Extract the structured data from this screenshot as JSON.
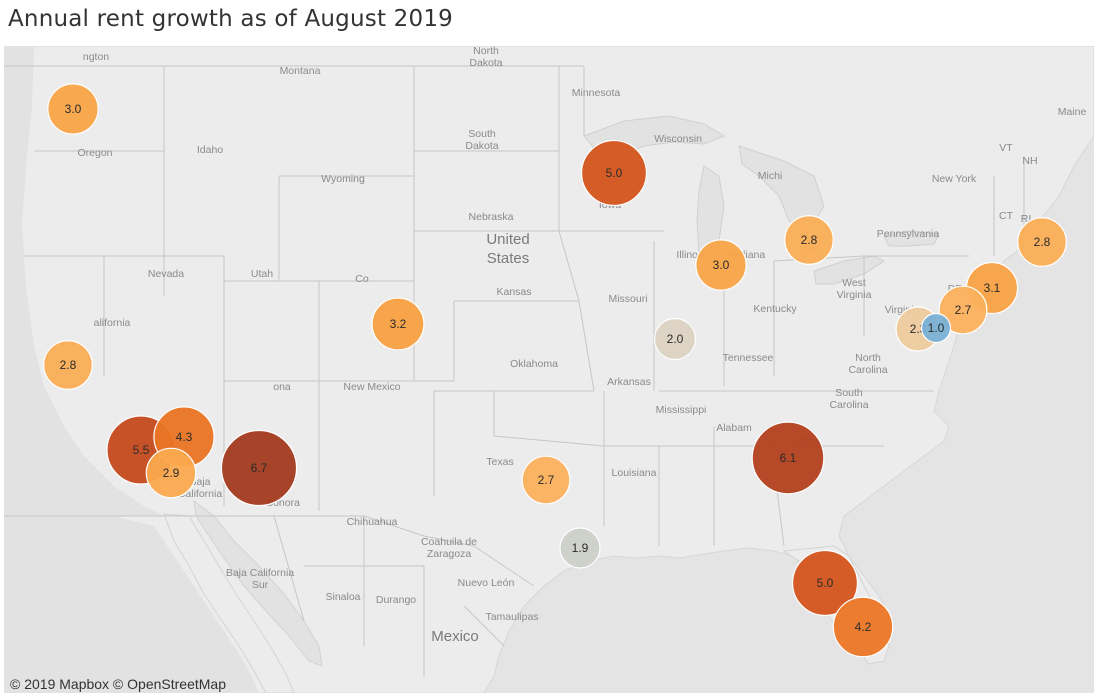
{
  "title": "Annual rent growth as of August 2019",
  "attribution": "© 2019 Mapbox © OpenStreetMap",
  "country_labels": [
    {
      "id": "usa",
      "lines": [
        "United",
        "States"
      ]
    },
    {
      "id": "mexico",
      "lines": [
        "Mexico"
      ]
    }
  ],
  "place_labels": [
    {
      "id": "washington",
      "text": "ngton"
    },
    {
      "id": "montana",
      "text": "Montana"
    },
    {
      "id": "north-dakota",
      "lines": [
        "North",
        "Dakota"
      ]
    },
    {
      "id": "minnesota",
      "text": "Minnesota"
    },
    {
      "id": "maine",
      "text": "Maine"
    },
    {
      "id": "oregon",
      "text": "Oregon"
    },
    {
      "id": "idaho",
      "text": "Idaho"
    },
    {
      "id": "south-dakota",
      "lines": [
        "South",
        "Dakota"
      ]
    },
    {
      "id": "wisconsin",
      "text": "Wisconsin"
    },
    {
      "id": "vt",
      "text": "VT"
    },
    {
      "id": "nh",
      "text": "NH"
    },
    {
      "id": "wyoming",
      "text": "Wyoming"
    },
    {
      "id": "michigan",
      "text": "Michi"
    },
    {
      "id": "new-york",
      "text": "New York"
    },
    {
      "id": "iowa",
      "text": "Iowa"
    },
    {
      "id": "ct",
      "text": "CT"
    },
    {
      "id": "ri",
      "text": "RI"
    },
    {
      "id": "nebraska",
      "text": "Nebraska"
    },
    {
      "id": "pennsylvania",
      "text": "Pennsylvania"
    },
    {
      "id": "nevada",
      "text": "Nevada"
    },
    {
      "id": "utah",
      "text": "Utah"
    },
    {
      "id": "colorado",
      "text": "Co"
    },
    {
      "id": "illinois",
      "text": "Illinois"
    },
    {
      "id": "indiana",
      "text": "Indiana"
    },
    {
      "id": "ohio",
      "text": "Ohio"
    },
    {
      "id": "kansas",
      "text": "Kansas"
    },
    {
      "id": "missouri",
      "text": "Missouri"
    },
    {
      "id": "west-virginia",
      "lines": [
        "West",
        "Virginia"
      ]
    },
    {
      "id": "de",
      "text": "DE"
    },
    {
      "id": "california",
      "text": "alifornia"
    },
    {
      "id": "kentucky",
      "text": "Kentucky"
    },
    {
      "id": "virginia",
      "text": "Virginia"
    },
    {
      "id": "oklahoma",
      "text": "Oklahoma"
    },
    {
      "id": "tennessee",
      "text": "Tennessee"
    },
    {
      "id": "north-carolina",
      "lines": [
        "North",
        "Carolina"
      ]
    },
    {
      "id": "arizona",
      "text": "ona"
    },
    {
      "id": "new-mexico",
      "text": "New Mexico"
    },
    {
      "id": "arkansas",
      "text": "Arkansas"
    },
    {
      "id": "south-carolina",
      "lines": [
        "South",
        "Carolina"
      ]
    },
    {
      "id": "mississippi",
      "text": "Mississippi"
    },
    {
      "id": "alabama",
      "text": "Alabam"
    },
    {
      "id": "georgia",
      "text": "orgia"
    },
    {
      "id": "texas",
      "text": "Texas"
    },
    {
      "id": "louisiana",
      "text": "Louisiana"
    },
    {
      "id": "baja-california",
      "lines": [
        "Baja",
        "California"
      ]
    },
    {
      "id": "sonora",
      "text": "Sonora"
    },
    {
      "id": "chihuahua",
      "text": "Chihuahua"
    },
    {
      "id": "coahuila",
      "lines": [
        "Coahuila de",
        "Zaragoza"
      ]
    },
    {
      "id": "nuevo-leon",
      "text": "Nuevo León"
    },
    {
      "id": "baja-california-sur",
      "lines": [
        "Baja California",
        "Sur"
      ]
    },
    {
      "id": "sinaloa",
      "text": "Sinaloa"
    },
    {
      "id": "durango",
      "text": "Durango"
    },
    {
      "id": "tamaulipas",
      "text": "Tamaulipas"
    }
  ],
  "metros": [
    {
      "id": "seattle",
      "value": 3.0,
      "color": "#f9a447"
    },
    {
      "id": "minneapolis",
      "value": 5.0,
      "color": "#d4541c"
    },
    {
      "id": "chicago",
      "value": 3.0,
      "color": "#f9a447"
    },
    {
      "id": "detroit",
      "value": 2.8,
      "color": "#fbae56"
    },
    {
      "id": "boston",
      "value": 2.8,
      "color": "#fbae56"
    },
    {
      "id": "denver",
      "value": 3.2,
      "color": "#f8a042"
    },
    {
      "id": "st-louis",
      "value": 2.0,
      "color": "#dcd3c4"
    },
    {
      "id": "new-york",
      "value": 3.1,
      "color": "#f9a244"
    },
    {
      "id": "philadelphia",
      "value": 2.7,
      "color": "#fbb15d"
    },
    {
      "id": "washington-dc",
      "value": 2.3,
      "color": "#efcb9f"
    },
    {
      "id": "baltimore",
      "value": 1.0,
      "color": "#79b1d6"
    },
    {
      "id": "sacramento",
      "value": 2.8,
      "color": "#fbae56"
    },
    {
      "id": "riverside",
      "value": 4.3,
      "color": "#ea7524"
    },
    {
      "id": "los-angeles",
      "value": 5.5,
      "color": "#c64a1d"
    },
    {
      "id": "san-diego",
      "value": 2.9,
      "color": "#fba94f"
    },
    {
      "id": "phoenix",
      "value": 6.7,
      "color": "#a33a1e"
    },
    {
      "id": "dallas",
      "value": 2.7,
      "color": "#fbb15d"
    },
    {
      "id": "houston",
      "value": 1.9,
      "color": "#cdd0c9"
    },
    {
      "id": "atlanta",
      "value": 6.1,
      "color": "#b2401d"
    },
    {
      "id": "orlando",
      "value": 5.0,
      "color": "#d4541c"
    },
    {
      "id": "miami",
      "value": 4.2,
      "color": "#ec7726"
    }
  ],
  "colors": {
    "land": "#ececec",
    "water": "#e2e2e2",
    "border": "#bdbdbd",
    "bubble_stroke": "#ffffff"
  }
}
